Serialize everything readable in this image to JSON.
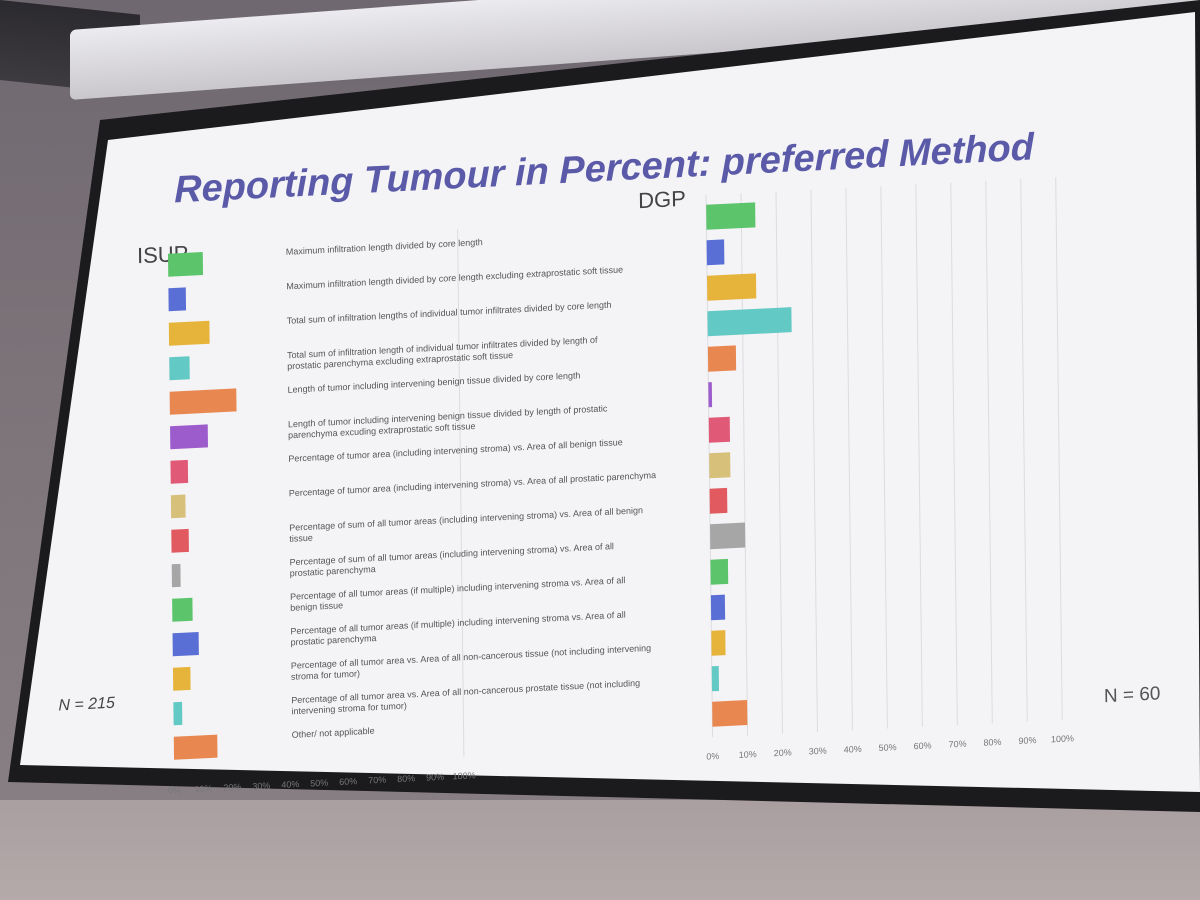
{
  "slide": {
    "title": "Reporting Tumour in Percent: preferred Method",
    "title_color": "#5a5aa8"
  },
  "chart_data": [
    {
      "type": "bar",
      "orientation": "horizontal",
      "title": "ISUP",
      "annotation": "N = 215",
      "categories": [
        "Maximum infiltration length divided by core length",
        "Maximum infiltration length divided by core length excluding extraprostatic soft tissue",
        "Total sum of infiltration lengths of individual tumor infiltrates divided by core length",
        "Total sum of infiltration length of individual tumor infiltrates divided by length of prostatic parenchyma excluding extraprostatic soft tissue",
        "Length of tumor including intervening benign tissue divided by core length",
        "Length of tumor including intervening benign tissue divided by length of prostatic parenchyma excuding extraprostatic soft tissue",
        "Percentage of tumor area (including intervening stroma) vs. Area of all benign tissue",
        "Percentage of tumor area (including intervening stroma) vs. Area of all prostatic parenchyma",
        "Percentage of sum of all tumor areas (including intervening stroma) vs. Area of all benign tissue",
        "Percentage of sum of all tumor areas (including intervening stroma) vs. Area of all prostatic parenchyma",
        "Percentage of all tumor areas (if multiple) including intervening stroma vs. Area of all benign tissue",
        "Percentage of all tumor areas (if multiple) including intervening stroma vs. Area of all prostatic parenchyma",
        "Percentage of all tumor area vs. Area of all non-cancerous tissue (not including intervening stroma for tumor)",
        "Percentage of all tumor area vs. Area of all non-cancerous prostate tissue (not including intervening stroma for tumor)",
        "Other/ not applicable"
      ],
      "values": [
        12,
        6,
        14,
        7,
        23,
        13,
        6,
        5,
        6,
        3,
        7,
        9,
        6,
        3,
        15
      ],
      "colors": [
        "#5cc46a",
        "#5a6fd6",
        "#e6b43a",
        "#63c9c4",
        "#e88850",
        "#9d5ccc",
        "#e05a78",
        "#d6c07a",
        "#e05a60",
        "#a6a6a6",
        "#5cc46a",
        "#5a6fd6",
        "#e6b43a",
        "#63c9c4",
        "#e88850"
      ],
      "xlim": [
        0,
        100
      ],
      "xticks": [
        "0%",
        "10%",
        "20%",
        "30%",
        "40%",
        "50%",
        "60%",
        "70%",
        "80%",
        "90%",
        "100%"
      ],
      "grid": false
    },
    {
      "type": "bar",
      "orientation": "horizontal",
      "title": "DGP",
      "annotation": "N = 60",
      "values": [
        14,
        5,
        14,
        24,
        8,
        1,
        6,
        6,
        5,
        10,
        5,
        4,
        4,
        2,
        10
      ],
      "colors": [
        "#5cc46a",
        "#5a6fd6",
        "#e6b43a",
        "#63c9c4",
        "#e88850",
        "#9d5ccc",
        "#e05a78",
        "#d6c07a",
        "#e05a60",
        "#a6a6a6",
        "#5cc46a",
        "#5a6fd6",
        "#e6b43a",
        "#63c9c4",
        "#e88850"
      ],
      "xlim": [
        0,
        100
      ],
      "xticks": [
        "0%",
        "10%",
        "20%",
        "30%",
        "40%",
        "50%",
        "60%",
        "70%",
        "80%",
        "90%",
        "100%"
      ],
      "grid": true
    }
  ]
}
